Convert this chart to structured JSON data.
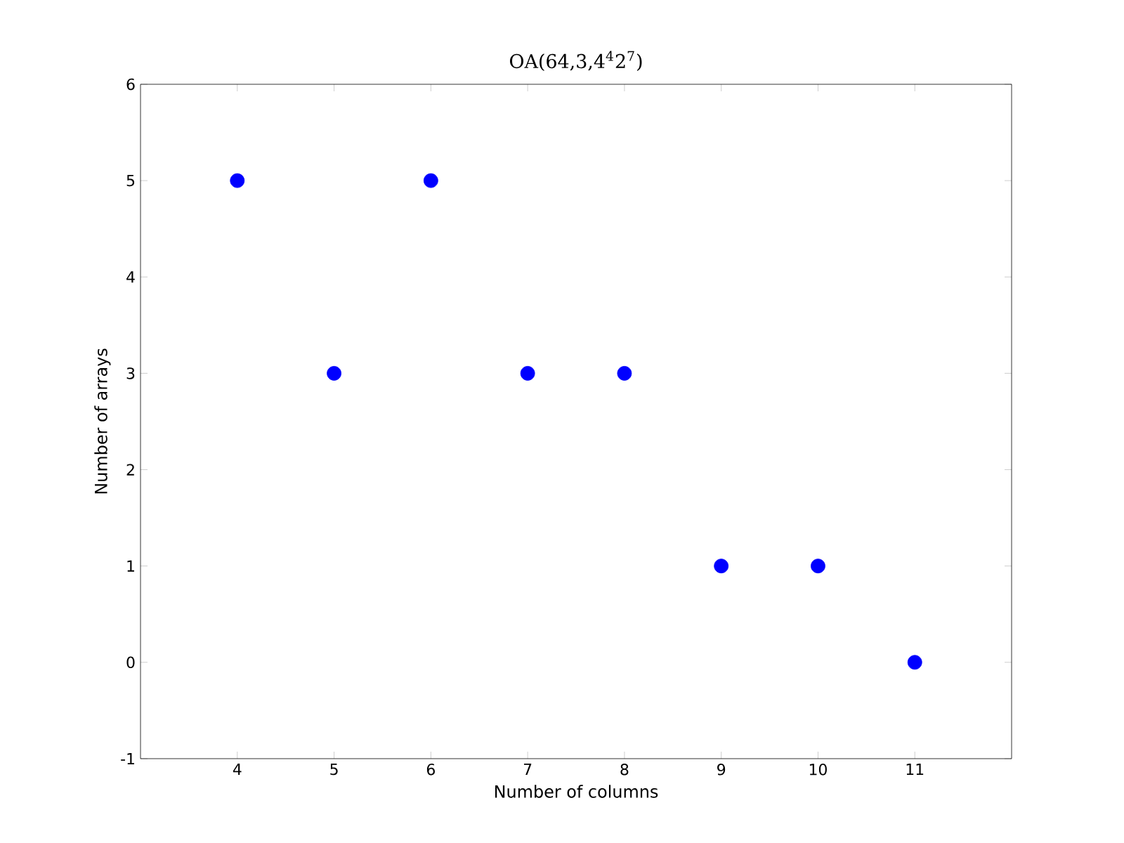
{
  "chart_data": {
    "type": "scatter",
    "title": "OA(64,3,4$^{4}$2$^{7}$)",
    "xlabel": "Number of columns",
    "ylabel": "Number of arrays",
    "x": [
      4,
      5,
      6,
      7,
      8,
      9,
      10,
      11
    ],
    "values": [
      5,
      3,
      5,
      3,
      3,
      1,
      1,
      0
    ],
    "color": "#0000ff",
    "marker": "circle",
    "xlim": [
      3,
      12
    ],
    "xticks": [
      4,
      5,
      6,
      7,
      8,
      9,
      10,
      11
    ],
    "ylim": [
      -1,
      6
    ],
    "yticks": [
      -1,
      0,
      1,
      2,
      3,
      4,
      5,
      6
    ]
  }
}
